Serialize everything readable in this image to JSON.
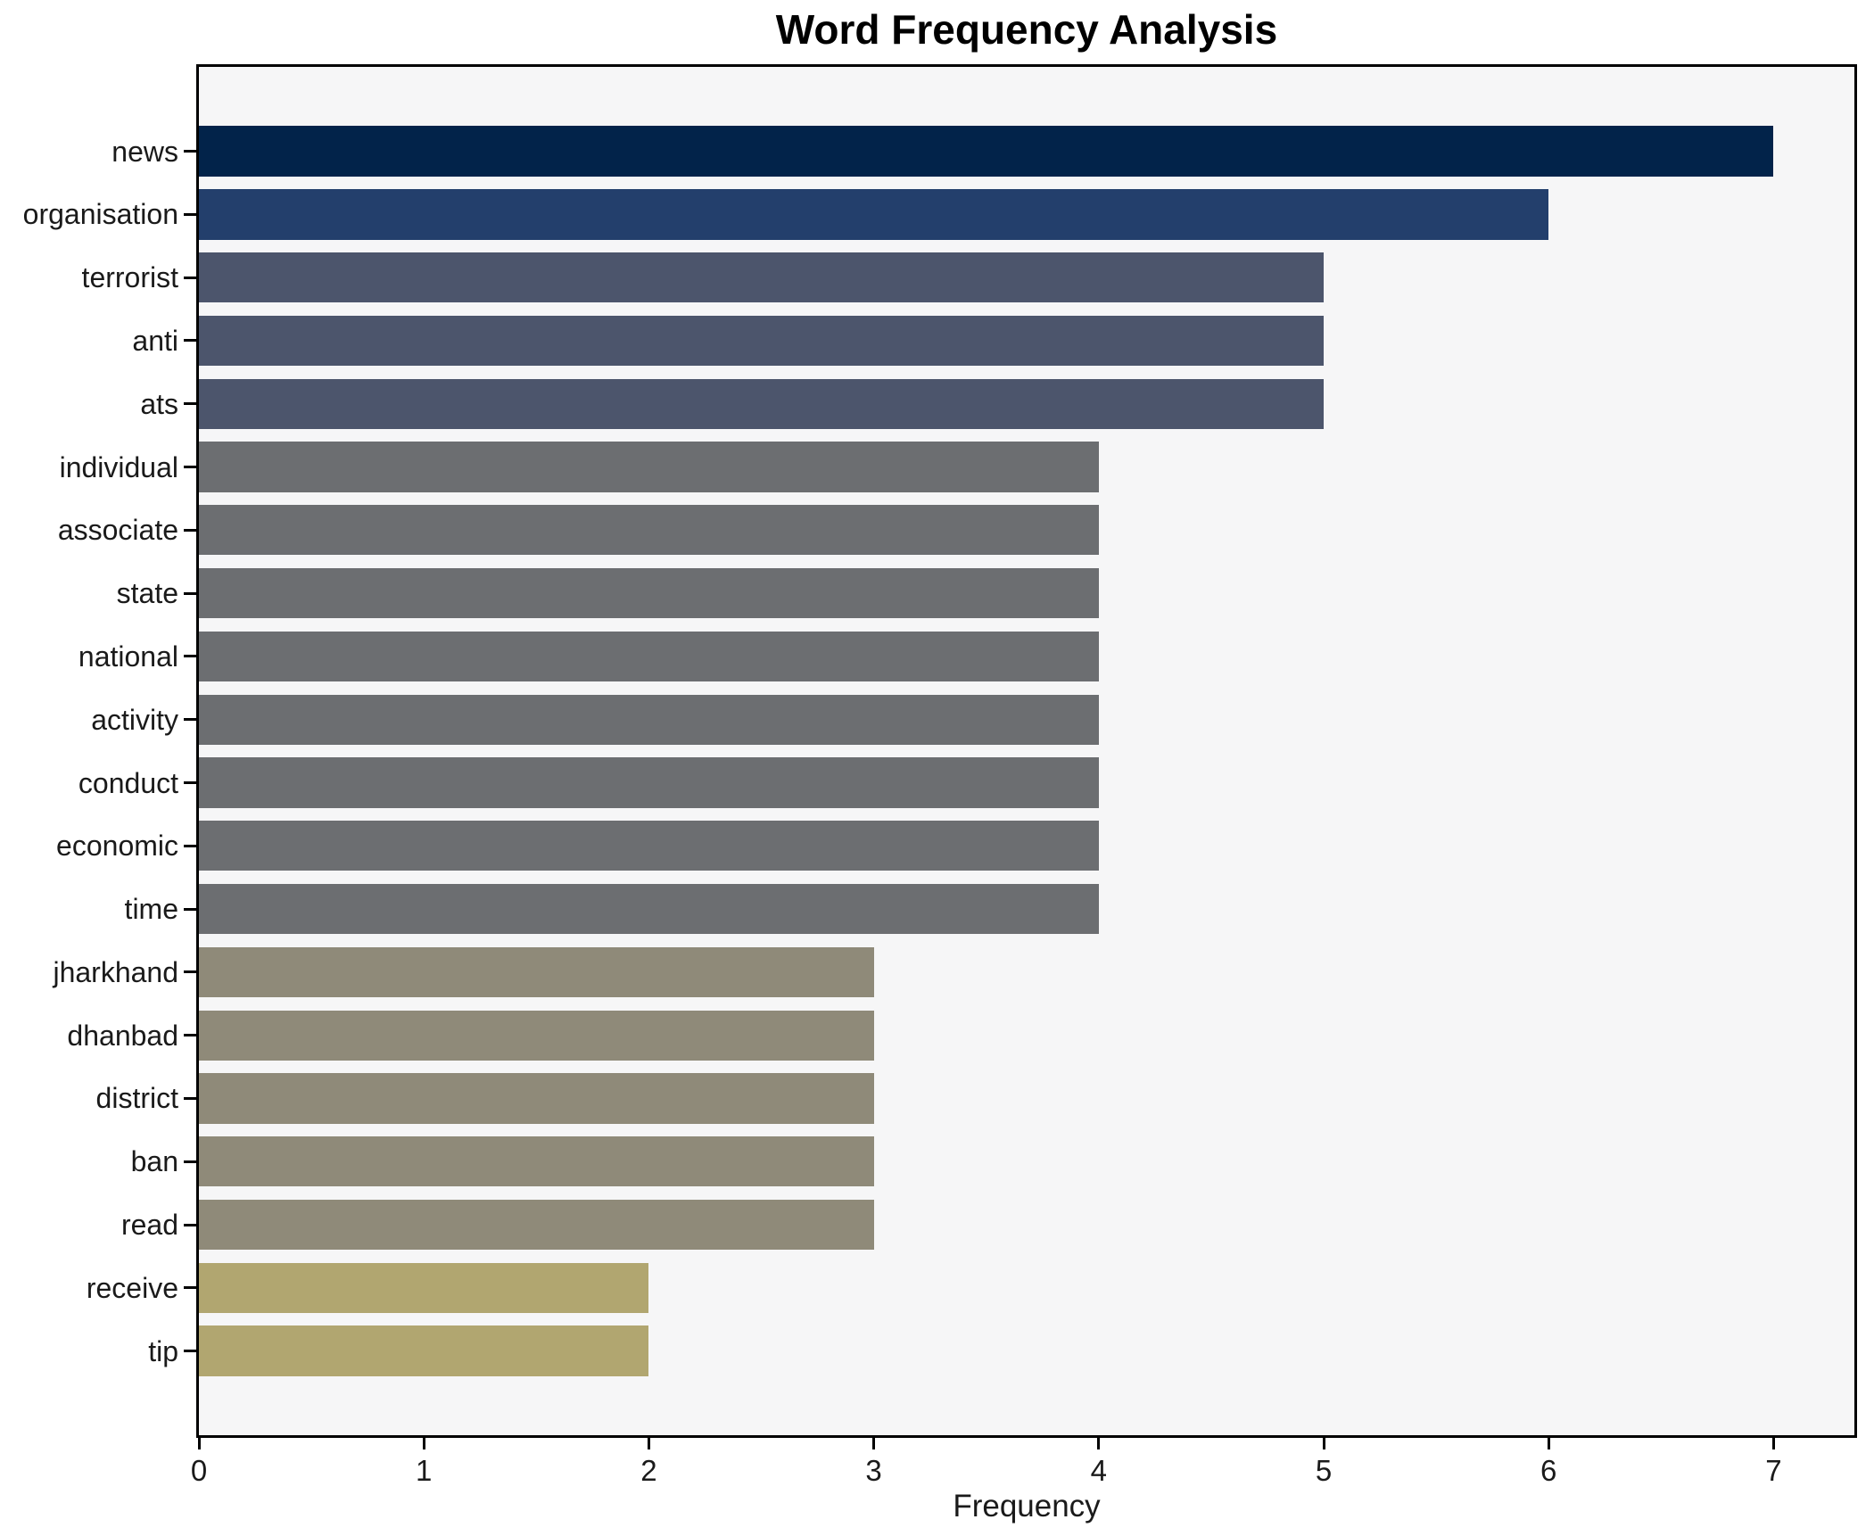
{
  "chart_data": {
    "type": "bar",
    "orientation": "horizontal",
    "title": "Word Frequency Analysis",
    "xlabel": "Frequency",
    "ylabel": "",
    "xlim": [
      0,
      7.37
    ],
    "xticks": [
      "0",
      "1",
      "2",
      "3",
      "4",
      "5",
      "6",
      "7"
    ],
    "grid": false,
    "legend": "none",
    "categories": [
      "news",
      "organisation",
      "terrorist",
      "anti",
      "ats",
      "individual",
      "associate",
      "state",
      "national",
      "activity",
      "conduct",
      "economic",
      "time",
      "jharkhand",
      "dhanbad",
      "district",
      "ban",
      "read",
      "receive",
      "tip"
    ],
    "values": [
      7,
      6,
      5,
      5,
      5,
      4,
      4,
      4,
      4,
      4,
      4,
      4,
      4,
      3,
      3,
      3,
      3,
      3,
      2,
      2
    ],
    "bar_colors": [
      "#02234a",
      "#233f6c",
      "#4c556c",
      "#4c556c",
      "#4c556c",
      "#6c6e71",
      "#6c6e71",
      "#6c6e71",
      "#6c6e71",
      "#6c6e71",
      "#6c6e71",
      "#6c6e71",
      "#6c6e71",
      "#8f8a79",
      "#8f8a79",
      "#8f8a79",
      "#8f8a79",
      "#8f8a79",
      "#b1a670",
      "#b1a670"
    ]
  },
  "style": {
    "plot_background": "#f6f6f7",
    "figure_background": "#ffffff",
    "spine_color": "#000000",
    "text_color": "#1a1a1a"
  }
}
